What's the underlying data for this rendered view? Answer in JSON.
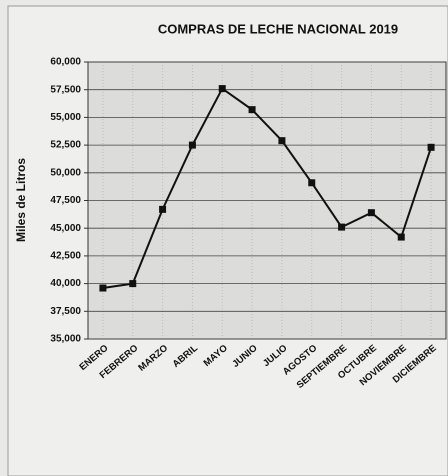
{
  "chart_data": {
    "type": "line",
    "title": "COMPRAS DE LECHE NACIONAL 2019",
    "y_label": "Miles de Litros",
    "categories": [
      "ENERO",
      "FEBRERO",
      "MARZO",
      "ABRIL",
      "MAYO",
      "JUNIO",
      "JULIO",
      "AGOSTO",
      "SEPTIEMBRE",
      "OCTUBRE",
      "NOVIEMBRE",
      "DICIEMBRE"
    ],
    "series": [
      {
        "name": "Compras",
        "color": "#111111",
        "values": [
          39600,
          40000,
          46700,
          52500,
          57600,
          55700,
          52900,
          49100,
          45100,
          46400,
          44200,
          52300
        ]
      }
    ],
    "ylim": [
      35000,
      60000
    ],
    "yticks": [
      {
        "value": 35000,
        "label": "35,000"
      },
      {
        "value": 37500,
        "label": "37,500"
      },
      {
        "value": 40000,
        "label": "40,000"
      },
      {
        "value": 42500,
        "label": "42,500"
      },
      {
        "value": 45000,
        "label": "45,000"
      },
      {
        "value": 47500,
        "label": "47,500"
      },
      {
        "value": 50000,
        "label": "50,000"
      },
      {
        "value": 52500,
        "label": "52,500"
      },
      {
        "value": 55000,
        "label": "55,000"
      },
      {
        "value": 57500,
        "label": "57,500"
      },
      {
        "value": 60000,
        "label": "60,000"
      }
    ],
    "grid": true
  }
}
